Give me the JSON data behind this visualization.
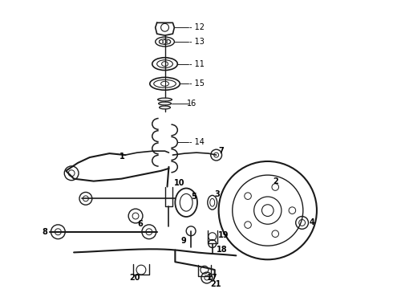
{
  "bg_color": "#ffffff",
  "line_color": "#1a1a1a",
  "fig_width": 4.9,
  "fig_height": 3.6,
  "dpi": 100,
  "font_size": 7.0,
  "bold_font_size": 7.5
}
